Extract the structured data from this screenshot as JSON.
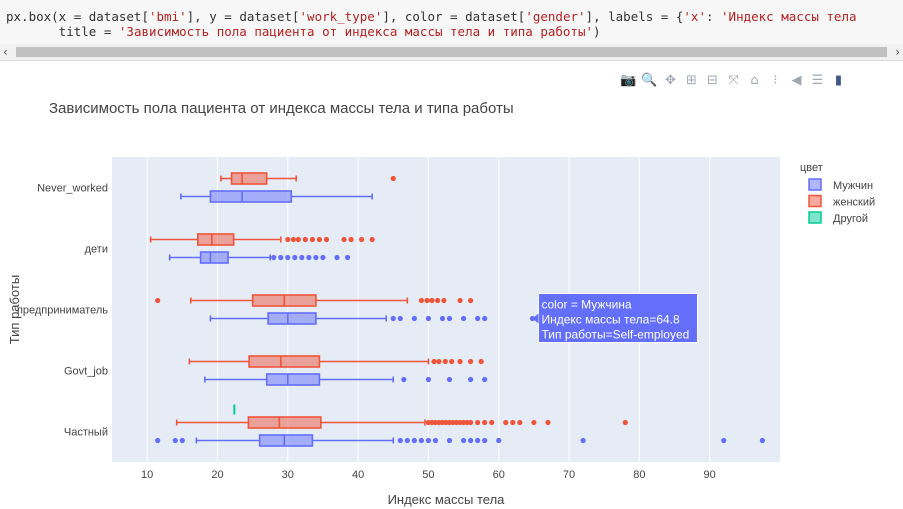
{
  "code": {
    "line1_parts": [
      {
        "t": "px.box(x = dataset[",
        "c": "#333"
      },
      {
        "t": "'bmi'",
        "c": "#b22222"
      },
      {
        "t": "], y = dataset[",
        "c": "#333"
      },
      {
        "t": "'work_type'",
        "c": "#b22222"
      },
      {
        "t": "], color = dataset[",
        "c": "#333"
      },
      {
        "t": "'gender'",
        "c": "#b22222"
      },
      {
        "t": "], labels = {",
        "c": "#333"
      },
      {
        "t": "'x'",
        "c": "#b22222"
      },
      {
        "t": ": ",
        "c": "#333"
      },
      {
        "t": "'Индекс массы тела",
        "c": "#b22222"
      }
    ],
    "line2_parts": [
      {
        "t": "       title = ",
        "c": "#333"
      },
      {
        "t": "'Зависимость пола пациента от индекса массы тела и типа работы'",
        "c": "#b22222"
      },
      {
        "t": ")",
        "c": "#333"
      }
    ]
  },
  "scroll": {
    "left_arrow": "‹",
    "right_arrow": "›"
  },
  "modebar": [
    {
      "name": "camera-icon",
      "glyph": "📷"
    },
    {
      "name": "zoom-icon",
      "glyph": "🔍"
    },
    {
      "name": "pan-icon",
      "glyph": "✥"
    },
    {
      "name": "zoom-in-icon",
      "glyph": "⊞"
    },
    {
      "name": "zoom-out-icon",
      "glyph": "⊟"
    },
    {
      "name": "autoscale-icon",
      "glyph": "⤧"
    },
    {
      "name": "home-icon",
      "glyph": "⌂"
    },
    {
      "name": "spike-lines-icon",
      "glyph": "⁝"
    },
    {
      "name": "hover-closest-icon",
      "glyph": "◀"
    },
    {
      "name": "hover-compare-icon",
      "glyph": "☰"
    },
    {
      "name": "plotly-logo-icon",
      "glyph": "▮"
    }
  ],
  "chart_data": {
    "type": "box",
    "orientation": "horizontal",
    "title": "Зависимость пола пациента от индекса массы тела и типа работы",
    "xlabel": "Индекс массы тела",
    "ylabel": "Тип работы",
    "xlim": [
      5,
      100
    ],
    "xticks": [
      10,
      20,
      30,
      40,
      50,
      60,
      70,
      80,
      90
    ],
    "categories": [
      "Never_worked",
      "дети",
      "предприниматель",
      "Govt_job",
      "Частный"
    ],
    "legend": {
      "title": "цвет",
      "position": "top-right",
      "outside": true
    },
    "grid": true,
    "series": [
      {
        "name": "Мужчин",
        "color": "#636efa",
        "boxes": [
          {
            "category": "Never_worked",
            "min": 14.8,
            "q1": 19,
            "median": 23.5,
            "q3": 30.5,
            "max": 42,
            "outliers": []
          },
          {
            "category": "дети",
            "min": 13.2,
            "q1": 17.6,
            "median": 19,
            "q3": 21.5,
            "max": 27.5,
            "outliers": [
              28,
              29,
              30,
              31,
              32,
              33,
              34,
              35,
              37,
              38.5
            ]
          },
          {
            "category": "предприниматель",
            "min": 19,
            "q1": 27.2,
            "median": 30,
            "q3": 34,
            "max": 44,
            "outliers": [
              45,
              46,
              48,
              50,
              52,
              53,
              55,
              57,
              58,
              64.8
            ]
          },
          {
            "category": "Govt_job",
            "min": 18.2,
            "q1": 27,
            "median": 30,
            "q3": 34.5,
            "max": 45,
            "outliers": [
              46.5,
              50,
              53,
              56,
              58
            ]
          },
          {
            "category": "Частный",
            "min": 17,
            "q1": 26,
            "median": 29.5,
            "q3": 33.5,
            "max": 45,
            "outliers": [
              11.5,
              14,
              15,
              46,
              47,
              48,
              49,
              50,
              51,
              53,
              55,
              56,
              57,
              58,
              60,
              72,
              92,
              97.5
            ]
          }
        ]
      },
      {
        "name": "женский",
        "color": "#ef553b",
        "boxes": [
          {
            "category": "Never_worked",
            "min": 20.5,
            "q1": 22,
            "median": 23.5,
            "q3": 27,
            "max": 31.2,
            "outliers": [
              45
            ]
          },
          {
            "category": "дети",
            "min": 10.5,
            "q1": 17.2,
            "median": 19.2,
            "q3": 22.3,
            "max": 29,
            "outliers": [
              30,
              30.8,
              31.5,
              32.5,
              33.5,
              34.5,
              35.5,
              38,
              39,
              40.5,
              42
            ]
          },
          {
            "category": "предприниматель",
            "min": 16.2,
            "q1": 25,
            "median": 29.5,
            "q3": 34,
            "max": 47,
            "outliers": [
              11.5,
              49,
              49.8,
              50.5,
              51.3,
              52.2,
              54.5,
              56
            ]
          },
          {
            "category": "Govt_job",
            "min": 16,
            "q1": 24.5,
            "median": 29,
            "q3": 34.5,
            "max": 50,
            "outliers": [
              50.8,
              51.5,
              52.4,
              53.3,
              54.5,
              56,
              57.5
            ]
          },
          {
            "category": "Частный",
            "min": 14.2,
            "q1": 24.4,
            "median": 28.8,
            "q3": 34.7,
            "max": 49.5,
            "outliers": [
              50,
              50.5,
              51,
              51.5,
              52,
              52.5,
              53,
              53.5,
              54,
              54.5,
              55,
              55.5,
              56,
              57,
              58,
              59,
              61,
              62,
              63,
              65,
              67,
              78
            ]
          }
        ]
      },
      {
        "name": "Другой",
        "color": "#00cc96",
        "boxes": [
          {
            "category": "Частный",
            "min": 22.4,
            "q1": 22.4,
            "median": 22.4,
            "q3": 22.4,
            "max": 22.4,
            "outliers": []
          }
        ]
      }
    ],
    "tooltip": {
      "category": "предприниматель",
      "x": 64.8,
      "lines": [
        "color = Мужчина",
        "Индекс массы тела=64.8",
        "Тип работы=Self-employed"
      ]
    }
  }
}
